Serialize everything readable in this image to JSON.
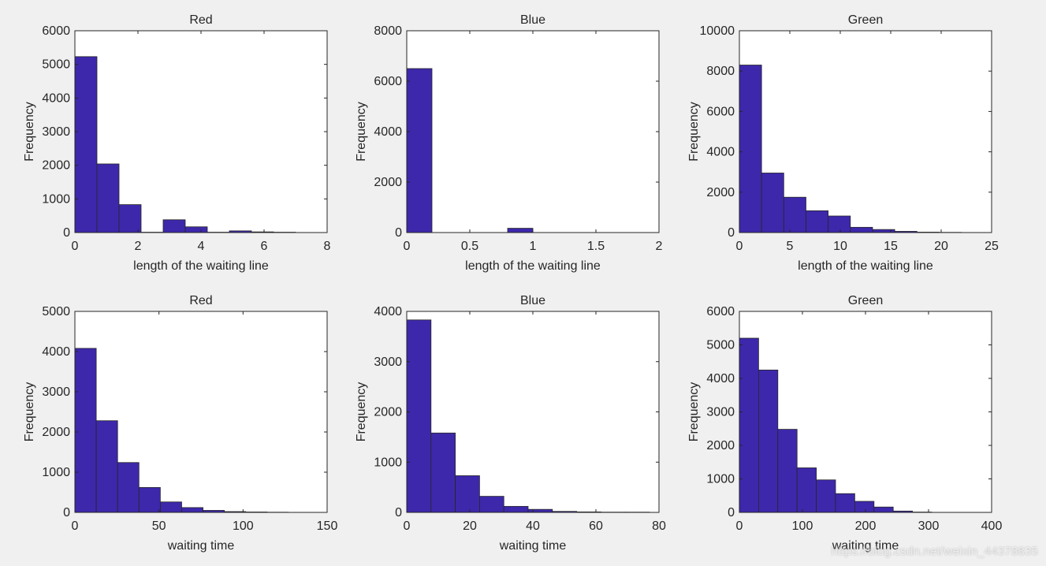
{
  "colors": {
    "background": "#f0f0f0",
    "axes_bg": "#ffffff",
    "bar_fill": "#3d28ab",
    "bar_edge": "#262626",
    "axis": "#262626",
    "text": "#262626"
  },
  "watermark": "https://blog.csdn.net/weixin_44378835",
  "chart_data": [
    {
      "id": "red-length",
      "type": "bar",
      "title": "Red",
      "xlabel": "length of the waiting line",
      "ylabel": "Frequency",
      "xlim": [
        0,
        8
      ],
      "ylim": [
        0,
        6000
      ],
      "xticks": [
        0,
        2,
        4,
        6,
        8
      ],
      "xtick_labels": [
        "0",
        "2",
        "4",
        "6",
        "8"
      ],
      "yticks": [
        0,
        1000,
        2000,
        3000,
        4000,
        5000,
        6000
      ],
      "ytick_labels": [
        "0",
        "1000",
        "2000",
        "3000",
        "4000",
        "5000",
        "6000"
      ],
      "bin_edges": [
        0,
        0.7,
        1.4,
        2.1,
        2.8,
        3.5,
        4.2,
        4.9,
        5.6,
        6.3,
        7.0
      ],
      "values": [
        5230,
        2040,
        830,
        10,
        380,
        170,
        10,
        50,
        20,
        10
      ]
    },
    {
      "id": "blue-length",
      "type": "bar",
      "title": "Blue",
      "xlabel": "length of the waiting line",
      "ylabel": "Frequency",
      "xlim": [
        0,
        2
      ],
      "ylim": [
        0,
        8000
      ],
      "xticks": [
        0,
        0.5,
        1,
        1.5,
        2
      ],
      "xtick_labels": [
        "0",
        "0.5",
        "1",
        "1.5",
        "2"
      ],
      "yticks": [
        0,
        2000,
        4000,
        6000,
        8000
      ],
      "ytick_labels": [
        "0",
        "2000",
        "4000",
        "6000",
        "8000"
      ],
      "bin_edges": [
        0,
        0.2,
        0.4,
        0.6,
        0.8,
        1.0,
        1.2,
        1.4,
        1.6,
        1.8,
        2.0
      ],
      "values": [
        6500,
        0,
        0,
        0,
        170,
        0,
        0,
        0,
        0,
        0
      ]
    },
    {
      "id": "green-length",
      "type": "bar",
      "title": "Green",
      "xlabel": "length of the waiting line",
      "ylabel": "Frequency",
      "xlim": [
        0,
        25
      ],
      "ylim": [
        0,
        10000
      ],
      "xticks": [
        0,
        5,
        10,
        15,
        20,
        25
      ],
      "xtick_labels": [
        "0",
        "5",
        "10",
        "15",
        "20",
        "25"
      ],
      "yticks": [
        0,
        2000,
        4000,
        6000,
        8000,
        10000
      ],
      "ytick_labels": [
        "0",
        "2000",
        "4000",
        "6000",
        "8000",
        "10000"
      ],
      "bin_edges": [
        0,
        2.2,
        4.4,
        6.6,
        8.8,
        11.0,
        13.2,
        15.4,
        17.6,
        19.8,
        22.0
      ],
      "values": [
        8300,
        2950,
        1750,
        1080,
        820,
        260,
        150,
        60,
        20,
        10
      ]
    },
    {
      "id": "red-time",
      "type": "bar",
      "title": "Red",
      "xlabel": "waiting time",
      "ylabel": "Frequency",
      "xlim": [
        0,
        150
      ],
      "ylim": [
        0,
        5000
      ],
      "xticks": [
        0,
        50,
        100,
        150
      ],
      "xtick_labels": [
        "0",
        "50",
        "100",
        "150"
      ],
      "yticks": [
        0,
        1000,
        2000,
        3000,
        4000,
        5000
      ],
      "ytick_labels": [
        "0",
        "1000",
        "2000",
        "3000",
        "4000",
        "5000"
      ],
      "bin_edges": [
        0,
        12.7,
        25.4,
        38.1,
        50.8,
        63.5,
        76.2,
        88.9,
        101.6,
        114.3,
        127.0
      ],
      "values": [
        4080,
        2280,
        1240,
        620,
        260,
        120,
        50,
        20,
        10,
        5
      ]
    },
    {
      "id": "blue-time",
      "type": "bar",
      "title": "Blue",
      "xlabel": "waiting time",
      "ylabel": "Frequency",
      "xlim": [
        0,
        80
      ],
      "ylim": [
        0,
        4000
      ],
      "xticks": [
        0,
        20,
        40,
        60,
        80
      ],
      "xtick_labels": [
        "0",
        "20",
        "40",
        "60",
        "80"
      ],
      "yticks": [
        0,
        1000,
        2000,
        3000,
        4000
      ],
      "ytick_labels": [
        "0",
        "1000",
        "2000",
        "3000",
        "4000"
      ],
      "bin_edges": [
        0,
        7.7,
        15.4,
        23.1,
        30.8,
        38.5,
        46.2,
        53.9,
        61.6,
        69.3,
        77.0
      ],
      "values": [
        3830,
        1580,
        730,
        320,
        120,
        60,
        20,
        10,
        5,
        5
      ]
    },
    {
      "id": "green-time",
      "type": "bar",
      "title": "Green",
      "xlabel": "waiting time",
      "ylabel": "Frequency",
      "xlim": [
        0,
        400
      ],
      "ylim": [
        0,
        6000
      ],
      "xticks": [
        0,
        100,
        200,
        300,
        400
      ],
      "xtick_labels": [
        "0",
        "100",
        "200",
        "300",
        "400"
      ],
      "yticks": [
        0,
        1000,
        2000,
        3000,
        4000,
        5000,
        6000
      ],
      "ytick_labels": [
        "0",
        "1000",
        "2000",
        "3000",
        "4000",
        "5000",
        "6000"
      ],
      "bin_edges": [
        0,
        30.5,
        61,
        91.5,
        122,
        152.5,
        183,
        213.5,
        244,
        274.5,
        305
      ],
      "values": [
        5200,
        4250,
        2480,
        1330,
        970,
        560,
        330,
        160,
        40,
        10
      ]
    }
  ]
}
